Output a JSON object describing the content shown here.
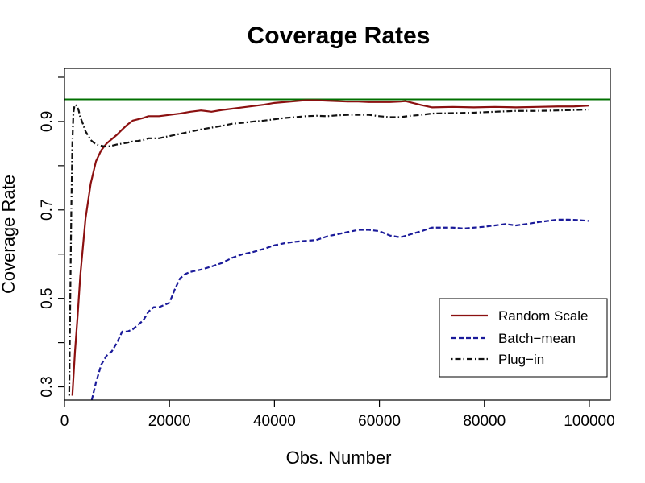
{
  "chart_data": {
    "type": "line",
    "title": "Coverage Rates",
    "xlabel": "Obs. Number",
    "ylabel": "Coverage Rate",
    "xlim": [
      0,
      104000
    ],
    "ylim": [
      0.27,
      1.02
    ],
    "xticks": [
      0,
      20000,
      40000,
      60000,
      80000,
      100000
    ],
    "xtick_labels": [
      "0",
      "20000",
      "40000",
      "60000",
      "80000",
      "100000"
    ],
    "yticks": [
      0.3,
      0.5,
      0.7,
      0.9
    ],
    "ytick_labels": [
      "0.3",
      "0.5",
      "0.7",
      "0.9"
    ],
    "yticks_minor": [
      0.4,
      0.6,
      0.8,
      1.0
    ],
    "grid": false,
    "legend_position": "bottom-right",
    "reference_line": {
      "y": 0.95,
      "color": "#007000"
    },
    "series": [
      {
        "name": "Random Scale",
        "color": "#8B1010",
        "dash": "solid",
        "x": [
          1500,
          2000,
          2500,
          3000,
          4000,
          5000,
          6000,
          7000,
          8000,
          9000,
          10000,
          11000,
          12000,
          13000,
          14000,
          15000,
          16000,
          18000,
          20000,
          22000,
          24000,
          26000,
          28000,
          30000,
          32000,
          34000,
          36000,
          38000,
          40000,
          42000,
          44000,
          46000,
          48000,
          50000,
          52000,
          54000,
          56000,
          58000,
          60000,
          62000,
          64000,
          65000,
          66000,
          68000,
          70000,
          74000,
          78000,
          82000,
          86000,
          90000,
          94000,
          97000,
          100000
        ],
        "y": [
          0.28,
          0.38,
          0.46,
          0.55,
          0.68,
          0.76,
          0.81,
          0.835,
          0.85,
          0.86,
          0.87,
          0.882,
          0.893,
          0.902,
          0.905,
          0.908,
          0.912,
          0.912,
          0.915,
          0.918,
          0.922,
          0.925,
          0.922,
          0.926,
          0.929,
          0.932,
          0.935,
          0.938,
          0.942,
          0.944,
          0.946,
          0.948,
          0.948,
          0.947,
          0.946,
          0.945,
          0.945,
          0.944,
          0.944,
          0.944,
          0.945,
          0.946,
          0.943,
          0.937,
          0.932,
          0.933,
          0.932,
          0.933,
          0.932,
          0.933,
          0.934,
          0.934,
          0.936
        ]
      },
      {
        "name": "Batch−mean",
        "color": "#1A1A9A",
        "dash": "dashed",
        "x": [
          5200,
          6000,
          7000,
          8000,
          9000,
          10000,
          11000,
          12000,
          13000,
          14000,
          15000,
          16000,
          17000,
          18000,
          19000,
          20000,
          21000,
          22000,
          23000,
          24000,
          26000,
          28000,
          30000,
          32000,
          34000,
          36000,
          38000,
          40000,
          42000,
          44000,
          46000,
          48000,
          50000,
          52000,
          54000,
          56000,
          58000,
          60000,
          62000,
          64000,
          66000,
          68000,
          70000,
          72000,
          74000,
          76000,
          78000,
          80000,
          82000,
          84000,
          86000,
          88000,
          90000,
          92000,
          94000,
          96000,
          98000,
          100000
        ],
        "y": [
          0.27,
          0.31,
          0.35,
          0.37,
          0.38,
          0.4,
          0.425,
          0.425,
          0.43,
          0.44,
          0.45,
          0.47,
          0.48,
          0.48,
          0.485,
          0.49,
          0.52,
          0.545,
          0.555,
          0.56,
          0.565,
          0.572,
          0.58,
          0.592,
          0.6,
          0.605,
          0.612,
          0.62,
          0.625,
          0.628,
          0.63,
          0.632,
          0.64,
          0.645,
          0.65,
          0.655,
          0.655,
          0.652,
          0.642,
          0.638,
          0.645,
          0.652,
          0.66,
          0.66,
          0.66,
          0.658,
          0.66,
          0.662,
          0.665,
          0.668,
          0.665,
          0.668,
          0.672,
          0.675,
          0.678,
          0.678,
          0.677,
          0.675
        ]
      },
      {
        "name": "Plug−in",
        "color": "#111111",
        "dash": "dotdash",
        "x": [
          900,
          1100,
          1300,
          1500,
          1700,
          1900,
          2100,
          2400,
          2700,
          3000,
          3500,
          4000,
          5000,
          6000,
          7000,
          8000,
          9000,
          10000,
          11000,
          12000,
          13000,
          14000,
          15000,
          16000,
          18000,
          20000,
          22000,
          24000,
          26000,
          28000,
          30000,
          32000,
          34000,
          36000,
          38000,
          40000,
          42000,
          44000,
          46000,
          48000,
          50000,
          52000,
          54000,
          56000,
          58000,
          60000,
          62000,
          64000,
          66000,
          68000,
          70000,
          74000,
          78000,
          82000,
          86000,
          90000,
          94000,
          97000,
          100000
        ],
        "y": [
          0.28,
          0.5,
          0.7,
          0.85,
          0.92,
          0.935,
          0.938,
          0.935,
          0.925,
          0.91,
          0.895,
          0.878,
          0.858,
          0.848,
          0.845,
          0.843,
          0.845,
          0.848,
          0.85,
          0.852,
          0.855,
          0.856,
          0.858,
          0.862,
          0.862,
          0.867,
          0.872,
          0.877,
          0.882,
          0.886,
          0.89,
          0.895,
          0.897,
          0.9,
          0.902,
          0.905,
          0.908,
          0.91,
          0.912,
          0.913,
          0.912,
          0.914,
          0.915,
          0.915,
          0.915,
          0.912,
          0.91,
          0.91,
          0.913,
          0.915,
          0.918,
          0.919,
          0.92,
          0.922,
          0.924,
          0.924,
          0.925,
          0.926,
          0.927
        ]
      }
    ]
  }
}
